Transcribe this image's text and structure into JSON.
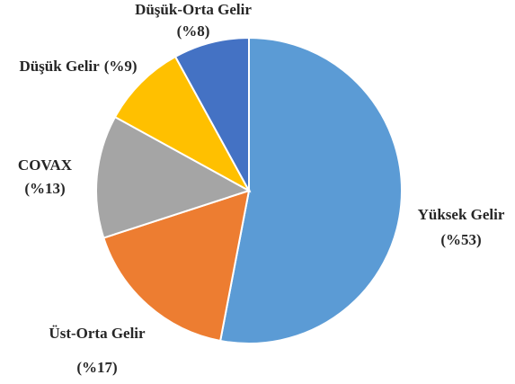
{
  "chart_data": {
    "type": "pie",
    "categories": [
      "Yüksek Gelir",
      "Üst-Orta Gelir",
      "COVAX",
      "Düşük Gelir",
      "Düşük-Orta Gelir"
    ],
    "values": [
      53,
      17,
      13,
      9,
      8
    ],
    "value_labels": [
      "(%53)",
      "(%17)",
      "(%13)",
      "(%9)",
      "(%8)"
    ],
    "colors": [
      "#5b9bd5",
      "#ed7d31",
      "#a5a5a5",
      "#ffc000",
      "#4472c4"
    ]
  }
}
